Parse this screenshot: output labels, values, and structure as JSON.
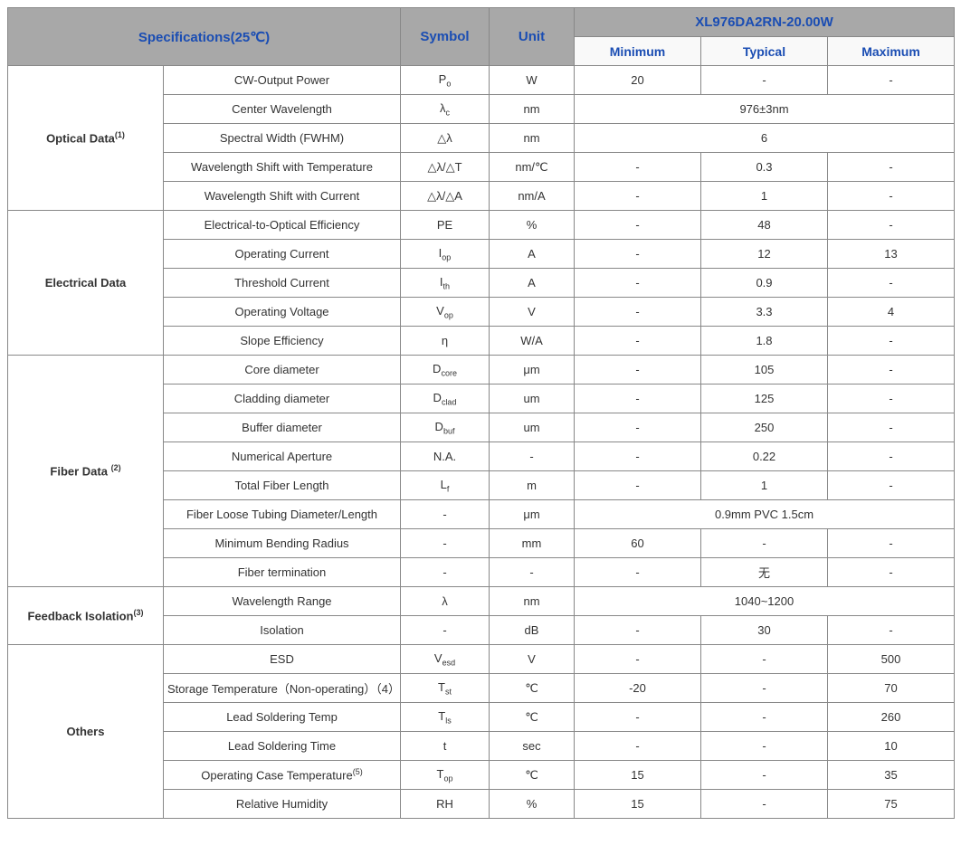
{
  "header": {
    "specifications": "Specifications(25℃)",
    "symbol": "Symbol",
    "unit": "Unit",
    "product": "XL976DA2RN-20.00W",
    "minimum": "Minimum",
    "typical": "Typical",
    "maximum": "Maximum"
  },
  "sections": {
    "optical": "Optical Data",
    "optical_sup": "(1)",
    "electrical": "Electrical Data",
    "fiber": "Fiber Data",
    "fiber_sup": "(2)",
    "feedback": "Feedback Isolation",
    "feedback_sup": "(3)",
    "others": "Others"
  },
  "rows": {
    "r1": {
      "p": "CW-Output Power",
      "sym": "P",
      "sub": "o",
      "u": "W",
      "min": "20",
      "typ": "-",
      "max": "-"
    },
    "r2": {
      "p": "Center Wavelength",
      "sym": "λ",
      "sub": "c",
      "u": "nm",
      "span": "976±3nm"
    },
    "r3": {
      "p": "Spectral Width (FWHM)",
      "sym": "△λ",
      "u": "nm",
      "span": "6"
    },
    "r4": {
      "p": "Wavelength Shift with Temperature",
      "sym": "△λ/△T",
      "u": "nm/℃",
      "min": "-",
      "typ": "0.3",
      "max": "-"
    },
    "r5": {
      "p": "Wavelength Shift with Current",
      "sym": "△λ/△A",
      "u": "nm/A",
      "min": "-",
      "typ": "1",
      "max": "-"
    },
    "r6": {
      "p": "Electrical-to-Optical Efficiency",
      "sym": "PE",
      "u": "%",
      "min": "-",
      "typ": "48",
      "max": "-"
    },
    "r7": {
      "p": "Operating Current",
      "sym": "I",
      "sub": "op",
      "u": "A",
      "min": "-",
      "typ": "12",
      "max": "13"
    },
    "r8": {
      "p": "Threshold Current",
      "sym": "I",
      "sub": "th",
      "u": "A",
      "min": "-",
      "typ": "0.9",
      "max": "-"
    },
    "r9": {
      "p": "Operating Voltage",
      "sym": "V",
      "sub": "op",
      "u": "V",
      "min": "-",
      "typ": "3.3",
      "max": "4"
    },
    "r10": {
      "p": "Slope Efficiency",
      "sym": "η",
      "u": "W/A",
      "min": "-",
      "typ": "1.8",
      "max": "-"
    },
    "r11": {
      "p": "Core diameter",
      "sym": "D",
      "sub": "core",
      "u": "μm",
      "min": "-",
      "typ": "105",
      "max": "-"
    },
    "r12": {
      "p": "Cladding diameter",
      "sym": "D",
      "sub": "clad",
      "u": "um",
      "min": "-",
      "typ": "125",
      "max": "-"
    },
    "r13": {
      "p": "Buffer diameter",
      "sym": "D",
      "sub": "buf",
      "u": "um",
      "min": "-",
      "typ": "250",
      "max": "-"
    },
    "r14": {
      "p": "Numerical Aperture",
      "sym": "N.A.",
      "u": "-",
      "min": "-",
      "typ": "0.22",
      "max": "-"
    },
    "r15": {
      "p": "Total Fiber Length",
      "sym": "L",
      "sub": "f",
      "u": "m",
      "min": "-",
      "typ": "1",
      "max": "-"
    },
    "r16": {
      "p": "Fiber Loose Tubing Diameter/Length",
      "sym": "-",
      "u": "μm",
      "span": "0.9mm PVC 1.5cm"
    },
    "r17": {
      "p": "Minimum Bending Radius",
      "sym": "-",
      "u": "mm",
      "min": "60",
      "typ": "-",
      "max": "-"
    },
    "r18": {
      "p": "Fiber termination",
      "sym": "-",
      "u": "-",
      "min": "-",
      "typ": "无",
      "max": "-"
    },
    "r19": {
      "p": "Wavelength Range",
      "sym": "λ",
      "u": "nm",
      "span": "1040~1200"
    },
    "r20": {
      "p": "Isolation",
      "sym": "-",
      "u": "dB",
      "min": "-",
      "typ": "30",
      "max": "-"
    },
    "r21": {
      "p": "ESD",
      "sym": "V",
      "sub": "esd",
      "u": "V",
      "min": "-",
      "typ": "-",
      "max": "500"
    },
    "r22": {
      "p": "Storage Temperature（Non-operating）（4）",
      "sym": "T",
      "sub": "st",
      "u": "℃",
      "min": "-20",
      "typ": "-",
      "max": "70"
    },
    "r23": {
      "p": "Lead Soldering Temp",
      "sym": "T",
      "sub": "ls",
      "u": "℃",
      "min": "-",
      "typ": "-",
      "max": "260"
    },
    "r24": {
      "p": "Lead Soldering Time",
      "sym": "t",
      "u": "sec",
      "min": "-",
      "typ": "-",
      "max": "10"
    },
    "r25": {
      "p": "Operating Case Temperature",
      "sup": "(5)",
      "sym": "T",
      "sub": "op",
      "u": "℃",
      "min": "15",
      "typ": "-",
      "max": "35"
    },
    "r26": {
      "p": "Relative Humidity",
      "sym": "RH",
      "u": "%",
      "min": "15",
      "typ": "-",
      "max": "75"
    }
  }
}
